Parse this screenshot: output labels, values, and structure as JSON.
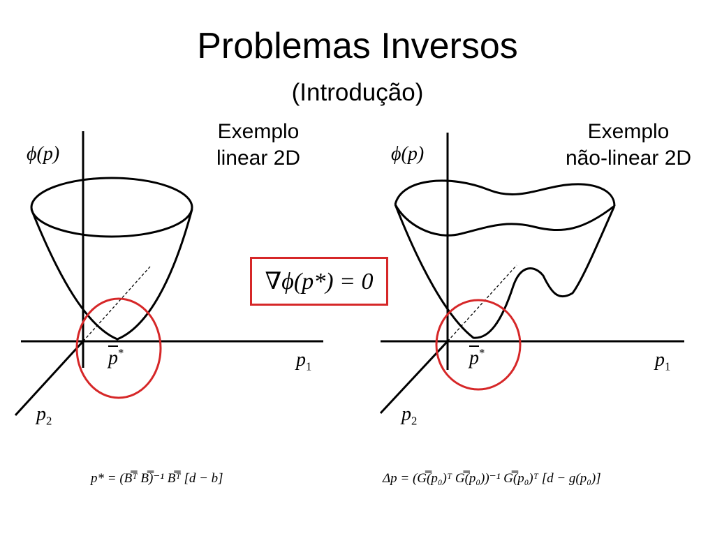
{
  "slide": {
    "title": "Problemas Inversos",
    "subtitle": "(Introdução)"
  },
  "left_panel": {
    "caption_line1": "Exemplo",
    "caption_line2": "linear 2D",
    "axis_phi": "ϕ(p)",
    "axis_p1": "p",
    "axis_p1_sub": "1",
    "axis_p2": "p",
    "axis_p2_sub": "2",
    "optimum": "p",
    "optimum_sup": "*",
    "formula": "p* = (B̿ᵀ B̿)⁻¹ B̿ᵀ [d − b]"
  },
  "right_panel": {
    "caption_line1": "Exemplo",
    "caption_line2": "não-linear 2D",
    "axis_phi": "ϕ(p)",
    "axis_p1": "p",
    "axis_p1_sub": "1",
    "axis_p2": "p",
    "axis_p2_sub": "2",
    "optimum": "p",
    "optimum_sup": "*",
    "formula": "Δp = (G̿(p₀)ᵀ G̿(p₀))⁻¹ G̿(p₀)ᵀ [d − g(p₀)]"
  },
  "center": {
    "gradient_condition": "∇ϕ(p*) = 0"
  },
  "colors": {
    "highlight": "#d62728",
    "ink": "#000000"
  }
}
